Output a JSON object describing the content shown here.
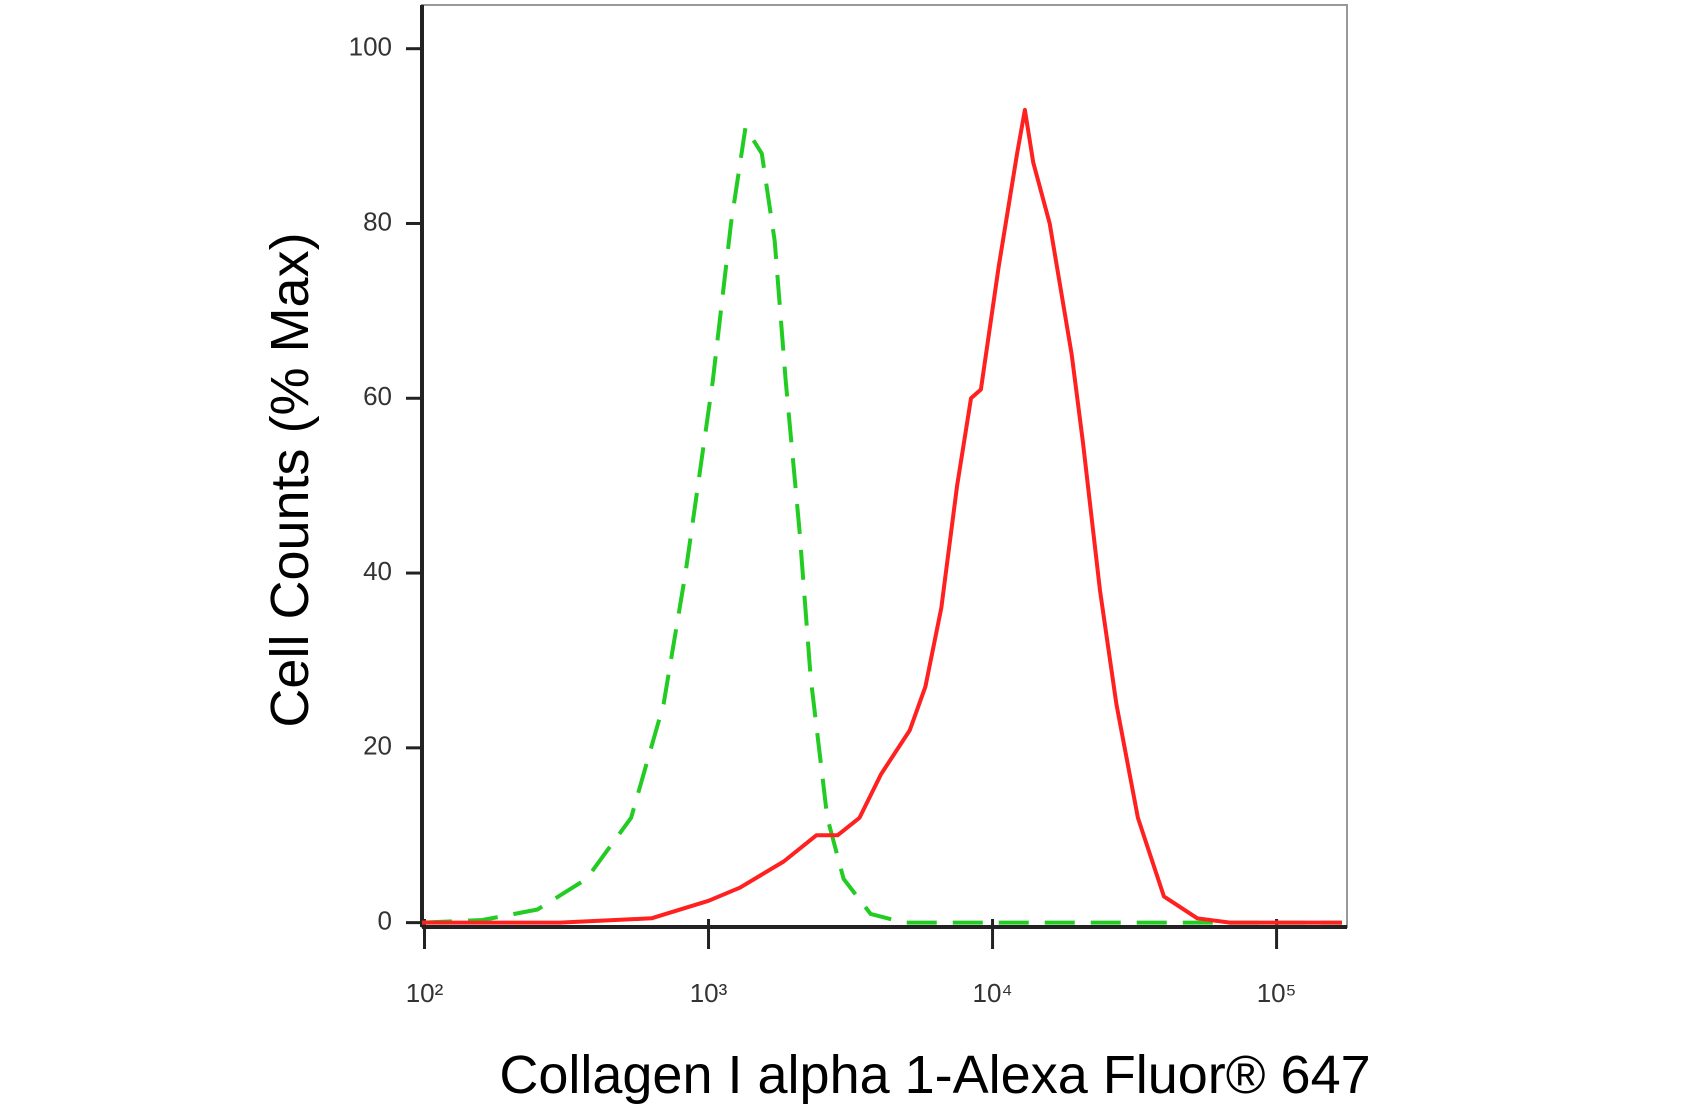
{
  "chart_data": {
    "type": "line",
    "xlabel": "Collagen I alpha 1-Alexa Fluor® 647",
    "ylabel": "Cell Counts (% Max)",
    "xscale": "log",
    "xlim": [
      98,
      177000
    ],
    "ylim": [
      -0.5,
      105
    ],
    "xticks": [
      {
        "value": 100,
        "label": "10²"
      },
      {
        "value": 1000,
        "label": "10³"
      },
      {
        "value": 10000,
        "label": "10⁴"
      },
      {
        "value": 100000,
        "label": "10⁵"
      }
    ],
    "yticks": [
      0,
      20,
      40,
      60,
      80,
      100
    ],
    "series": [
      {
        "color": "#22cc22",
        "linestyle": "dashed",
        "x": [
          98,
          160,
          250,
          372,
          534,
          695,
          830,
          1035,
          1200,
          1350,
          1540,
          1710,
          1870,
          2090,
          2290,
          2620,
          2990,
          3720,
          4870,
          10000,
          50000,
          170000
        ],
        "values": [
          0,
          0.3,
          1.5,
          5,
          12,
          25,
          40,
          62,
          80,
          91,
          88,
          78,
          62,
          45,
          28,
          12,
          5,
          1,
          0,
          0,
          0,
          0
        ]
      },
      {
        "color": "#ff2020",
        "linestyle": "solid",
        "x": [
          98,
          300,
          630,
          1000,
          1290,
          1840,
          2400,
          2850,
          3400,
          4050,
          5110,
          5800,
          6600,
          7500,
          8400,
          9100,
          10500,
          12200,
          13000,
          13900,
          15900,
          19000,
          20800,
          23900,
          27300,
          32500,
          40100,
          52600,
          68500,
          170000
        ],
        "values": [
          0,
          0,
          0.5,
          2.5,
          4,
          7,
          10,
          10,
          12,
          17,
          22,
          27,
          36,
          50,
          60,
          61,
          75,
          88,
          93,
          87,
          80,
          65,
          55,
          38,
          25,
          12,
          3,
          0.5,
          0,
          0
        ]
      }
    ]
  }
}
